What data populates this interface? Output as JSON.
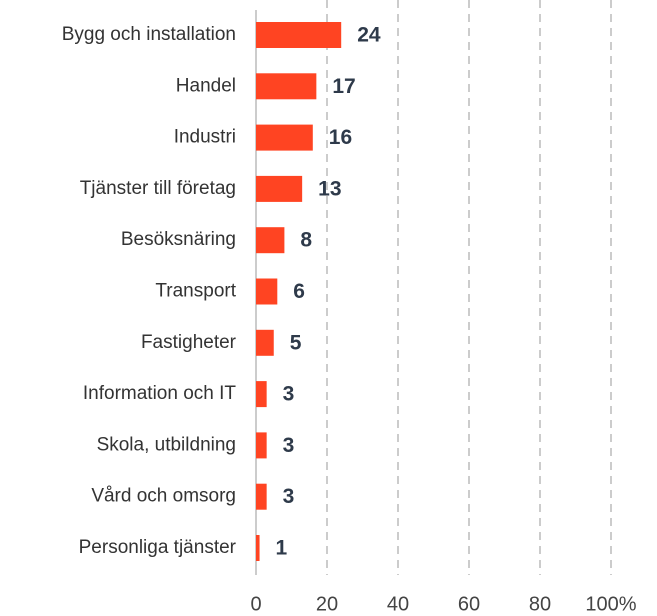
{
  "chart_data": {
    "type": "bar",
    "orientation": "horizontal",
    "categories": [
      "Bygg och installation",
      "Handel",
      "Industri",
      "Tjänster till företag",
      "Besöksnäring",
      "Transport",
      "Fastigheter",
      "Information och IT",
      "Skola, utbildning",
      "Vård och omsorg",
      "Personliga tjänster"
    ],
    "values": [
      24,
      17,
      16,
      13,
      8,
      6,
      5,
      3,
      3,
      3,
      1
    ],
    "color": "#ff4422",
    "xlim": [
      0,
      100
    ],
    "xticks": [
      0,
      20,
      40,
      60,
      80,
      {
        "value": 100,
        "label": "100%"
      }
    ],
    "grid": true
  }
}
